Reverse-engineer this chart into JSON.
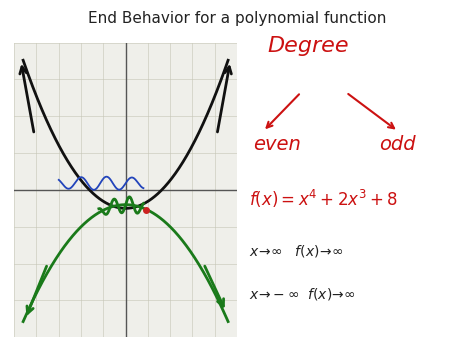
{
  "title": "End Behavior for a polynomial function",
  "title_fontsize": 11,
  "bg_color": "#ffffff",
  "graph_bg": "#efefea",
  "graph_bounds": [
    0.03,
    0.05,
    0.5,
    0.88
  ],
  "grid_color": "#c5c5b5",
  "axis_color": "#555555",
  "black_curve_color": "#111111",
  "green_curve_color": "#1a7a1a",
  "blue_squiggle_color": "#2244bb",
  "red_dot_color": "#cc2222",
  "text_color": "#cc1111",
  "degree_fontsize": 16,
  "even_odd_fontsize": 14,
  "fx_fontsize": 12,
  "behavior_fontsize": 10
}
